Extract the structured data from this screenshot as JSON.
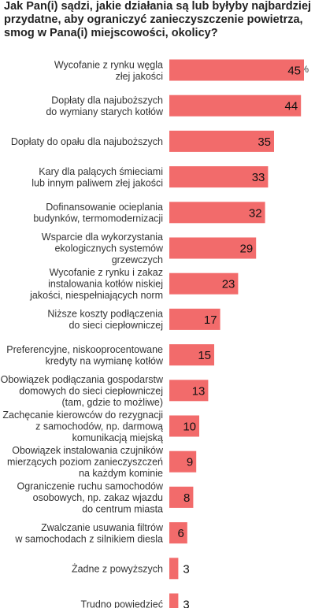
{
  "chart_data": {
    "type": "bar",
    "orientation": "horizontal",
    "title": "Jak Pan(i) sądzi, jakie działania są lub byłyby najbardziej przydatne, aby ograniczyć zanieczyszczenie powietrza, smog w Pana(i) miejscowości, okolicy?",
    "unit": "%",
    "bar_color": "#f26b6b",
    "categories": [
      [
        "Wycofanie z rynku węgla",
        "złej jakości"
      ],
      [
        "Dopłaty dla najuboższych",
        "do wymiany starych kotłów"
      ],
      [
        "Dopłaty do opału dla najuboższych"
      ],
      [
        "Kary dla palących śmieciami",
        "lub innym paliwem złej jakości"
      ],
      [
        "Dofinansowanie ocieplania",
        "budynków, termomodernizacji"
      ],
      [
        "Wsparcie dla wykorzystania",
        "ekologicznych systemów",
        "grzewczych"
      ],
      [
        "Wycofanie z rynku i zakaz",
        "instalowania kotłów niskiej",
        "jakości, niespełniających norm"
      ],
      [
        "Niższe koszty podłączenia",
        "do sieci ciepłowniczej"
      ],
      [
        "Preferencyjne, niskooprocentowane",
        "kredyty na wymianę kotłów"
      ],
      [
        "Obowiązek podłączania gospodarstw",
        "domowych do sieci ciepłowniczej",
        "(tam, gdzie to możliwe)"
      ],
      [
        "Zachęcanie kierowców do rezygnacji",
        "z samochodów, np. darmową",
        "komunikacją miejską"
      ],
      [
        "Obowiązek instalowania czujników",
        "mierzących poziom zanieczyszczeń",
        "na każdym kominie"
      ],
      [
        "Ograniczenie ruchu samochodów",
        "osobowych, np. zakaz wjazdu",
        "do centrum miasta"
      ],
      [
        "Zwalczanie usuwania filtrów",
        "w samochodach z silnikiem diesla"
      ],
      [
        "Żadne z powyższych"
      ],
      [
        "Trudno powiedzieć"
      ]
    ],
    "values": [
      45,
      44,
      35,
      33,
      32,
      29,
      23,
      17,
      15,
      13,
      10,
      9,
      8,
      6,
      3,
      3
    ],
    "xlim": [
      0,
      45
    ],
    "grid": false,
    "legend": "none"
  }
}
